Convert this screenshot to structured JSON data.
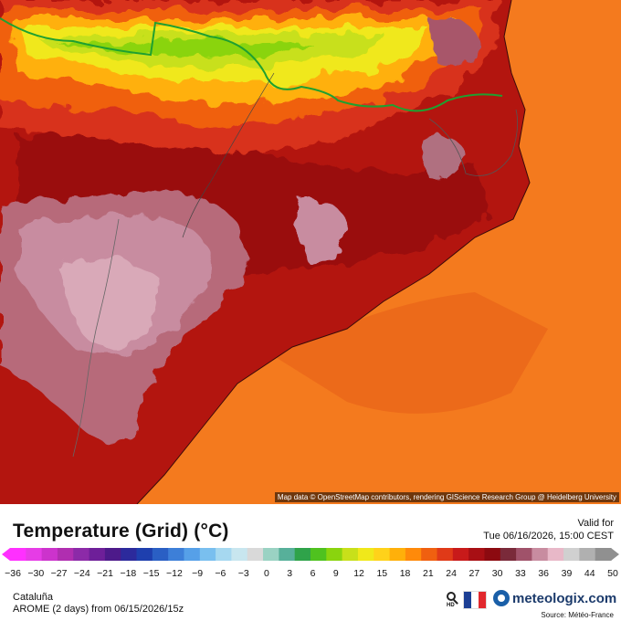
{
  "map": {
    "attribution": "Map data © OpenStreetMap contributors, rendering GIScience Research Group @ Heidelberg University"
  },
  "legend": {
    "title": "Temperature (Grid) (°C)",
    "valid_label": "Valid for",
    "valid_date": "Tue 06/16/2026, 15:00 CEST",
    "tick_labels": [
      "−36",
      "−30",
      "−27",
      "−24",
      "−21",
      "−18",
      "−15",
      "−12",
      "−9",
      "−6",
      "−3",
      "0",
      "3",
      "6",
      "9",
      "12",
      "15",
      "18",
      "21",
      "24",
      "27",
      "30",
      "33",
      "36",
      "39",
      "44",
      "50"
    ],
    "colors": [
      "#ff30ff",
      "#e63ce6",
      "#cc33cc",
      "#b02eb0",
      "#8c2aa8",
      "#6e1f99",
      "#4d1a8a",
      "#2c2a9c",
      "#1e3fae",
      "#2a5fc4",
      "#3d7fd8",
      "#56a0e8",
      "#79bfef",
      "#a6d8f0",
      "#c8e6ef",
      "#d9d9d9",
      "#9ad2c3",
      "#57b09a",
      "#2fa34a",
      "#4fc21f",
      "#8ad40e",
      "#c8e01a",
      "#f0e81a",
      "#ffd21a",
      "#ffb00a",
      "#ff8a0a",
      "#f06010",
      "#e03a18",
      "#c81a1a",
      "#a80f14",
      "#8c0a10",
      "#7a2a3a",
      "#a0526a",
      "#c88ca0",
      "#e8b8c8",
      "#d0d0d0",
      "#b0b0b0",
      "#909090"
    ],
    "region": "Cataluña",
    "model": "AROME (2 days) from 06/15/2026/15z",
    "brand": "meteologix.com",
    "source": "Source: Météo-France",
    "hd_label": "HD"
  }
}
